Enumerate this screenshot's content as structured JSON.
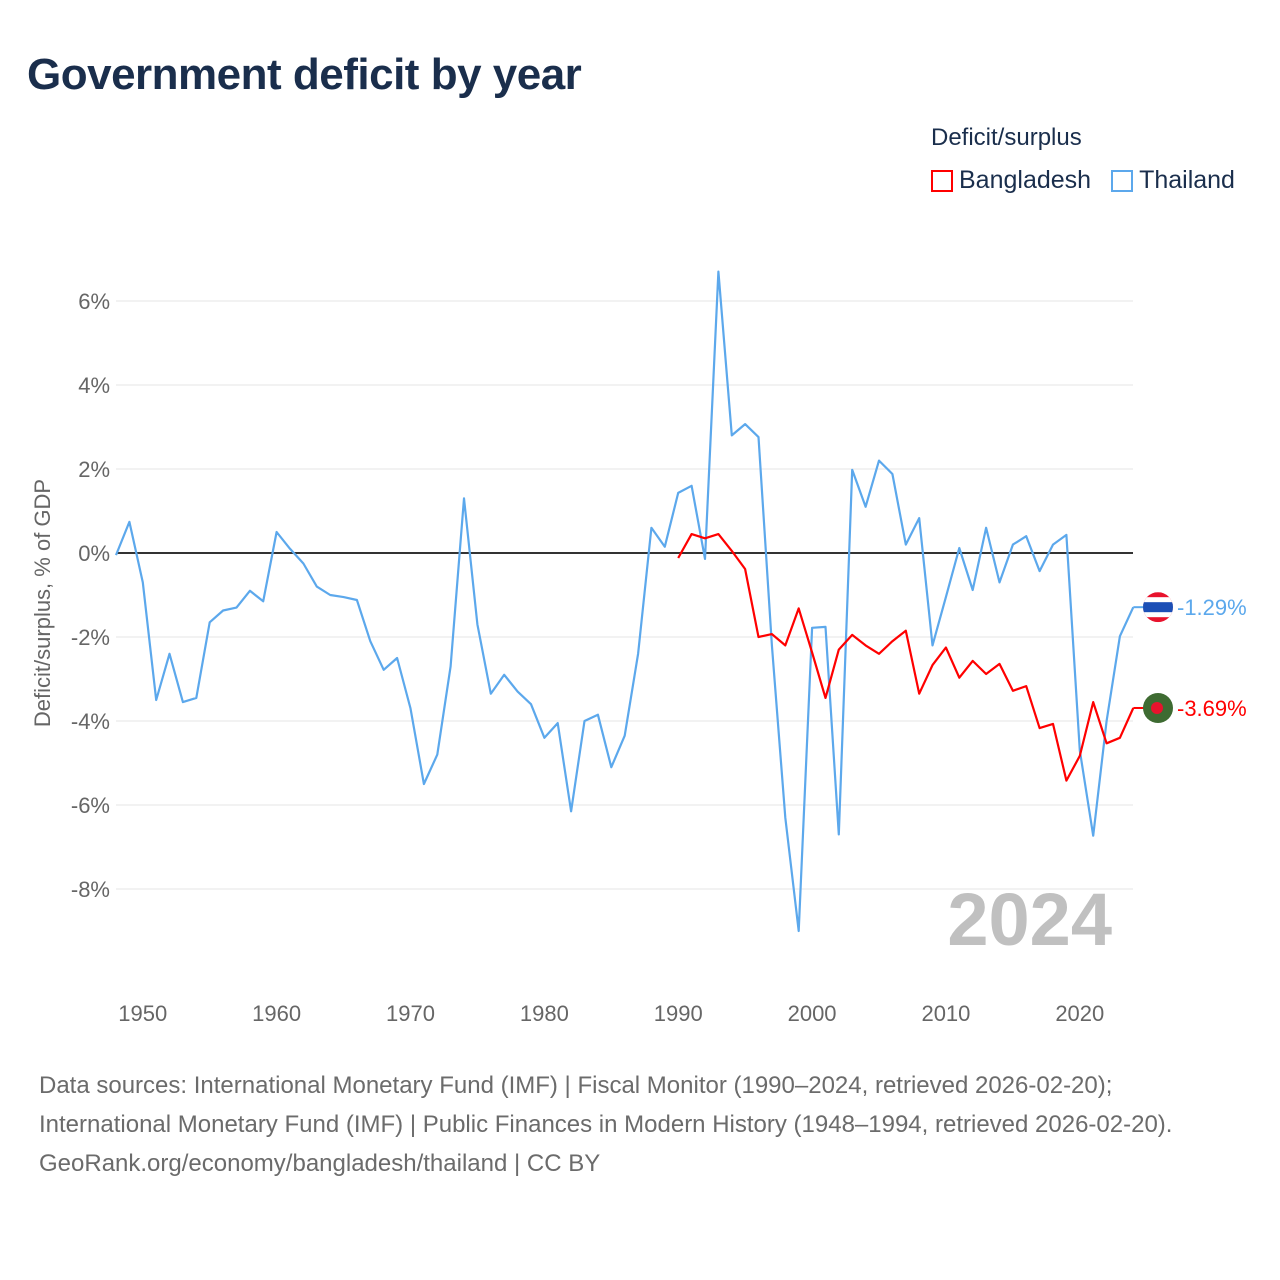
{
  "title": "Government deficit by year",
  "legend": {
    "title": "Deficit/surplus",
    "items": [
      {
        "name": "Bangladesh",
        "color": "#ff0000"
      },
      {
        "name": "Thailand",
        "color": "#5ca8ec"
      }
    ]
  },
  "footer": {
    "sources": "Data sources: International Monetary Fund (IMF) | Fiscal Monitor (1990–2024, retrieved 2026-02-20); International Monetary Fund (IMF) | Public Finances in Modern History (1948–1994, retrieved 2026-02-20).",
    "credit": "GeoRank.org/economy/bangladesh/thailand | CC BY"
  },
  "chart_data": {
    "type": "line",
    "title": "Government deficit by year",
    "xlabel": "",
    "ylabel": "Deficit/surplus, % of GDP",
    "xlim": [
      1948,
      2024
    ],
    "ylim": [
      -10,
      7
    ],
    "x_ticks": [
      1950,
      1960,
      1970,
      1980,
      1990,
      2000,
      2010,
      2020
    ],
    "y_ticks": [
      6,
      4,
      2,
      0,
      -2,
      -4,
      -6,
      -8
    ],
    "y_tick_labels": [
      "6%",
      "4%",
      "2%",
      "0%",
      "-2%",
      "-4%",
      "-6%",
      "-8%"
    ],
    "year_watermark": "2024",
    "grid": true,
    "legend_position": "top-right",
    "series": [
      {
        "name": "Thailand",
        "color": "#5ca8ec",
        "end_label": "-1.29%",
        "start_year": 1948,
        "values": [
          -0.05,
          0.74,
          -0.7,
          -3.5,
          -2.4,
          -3.55,
          -3.45,
          -1.65,
          -1.37,
          -1.3,
          -0.9,
          -1.15,
          0.5,
          0.1,
          -0.25,
          -0.8,
          -1.0,
          -1.05,
          -1.12,
          -2.1,
          -2.78,
          -2.5,
          -3.7,
          -5.5,
          -4.8,
          -2.7,
          1.3,
          -1.7,
          -3.35,
          -2.9,
          -3.3,
          -3.6,
          -4.4,
          -4.05,
          -6.15,
          -4.0,
          -3.85,
          -5.1,
          -4.35,
          -2.4,
          0.6,
          0.15,
          1.43,
          1.6,
          -0.14,
          6.7,
          2.8,
          3.07,
          2.76,
          -2.2,
          -6.3,
          -9.0,
          -1.78,
          -1.76,
          -6.7,
          1.98,
          1.1,
          2.2,
          1.88,
          0.2,
          0.83,
          -2.2,
          -1.05,
          0.12,
          -0.88,
          0.6,
          -0.7,
          0.2,
          0.4,
          -0.43,
          0.2,
          0.43,
          -4.7,
          -6.73,
          -4.0,
          -1.98,
          -1.29
        ]
      },
      {
        "name": "Bangladesh",
        "color": "#ff0000",
        "end_label": "-3.69%",
        "start_year": 1990,
        "values": [
          -0.12,
          0.45,
          0.35,
          0.45,
          0.05,
          -0.38,
          -2.0,
          -1.93,
          -2.2,
          -1.32,
          -2.37,
          -3.45,
          -2.3,
          -1.95,
          -2.2,
          -2.4,
          -2.1,
          -1.85,
          -3.35,
          -2.67,
          -2.25,
          -2.97,
          -2.57,
          -2.88,
          -2.64,
          -3.28,
          -3.17,
          -4.17,
          -4.07,
          -5.42,
          -4.83,
          -3.55,
          -4.53,
          -4.4,
          -3.69
        ]
      }
    ]
  }
}
